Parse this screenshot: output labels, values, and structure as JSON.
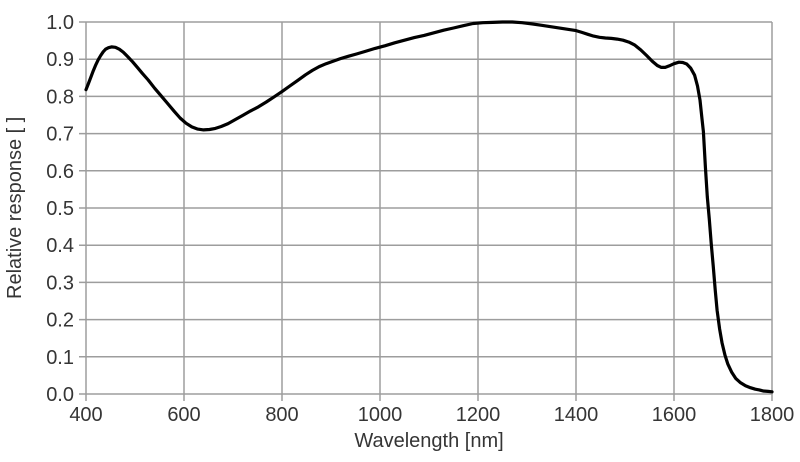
{
  "chart_data": {
    "type": "line",
    "title": "",
    "xlabel": "Wavelength [nm]",
    "ylabel": "Relative response [ ]",
    "xlim": [
      400,
      1800
    ],
    "ylim": [
      0.0,
      1.0
    ],
    "grid": true,
    "legend_position": "none",
    "x_ticks": [
      400,
      600,
      800,
      1000,
      1200,
      1400,
      1600,
      1800
    ],
    "x_tick_labels": [
      "400",
      "600",
      "800",
      "1000",
      "1200",
      "1400",
      "1600",
      "1800"
    ],
    "y_ticks": [
      0.0,
      0.1,
      0.2,
      0.3,
      0.4,
      0.5,
      0.6,
      0.7,
      0.8,
      0.9,
      1.0
    ],
    "y_tick_labels": [
      "0.0",
      "0.1",
      "0.2",
      "0.3",
      "0.4",
      "0.5",
      "0.6",
      "0.7",
      "0.8",
      "0.9",
      "1.0"
    ],
    "line_color": "#000000",
    "grid_color": "#9d9d9d",
    "text_color": "#353535",
    "series": [
      {
        "name": "Relative response",
        "points": [
          [
            400,
            0.818
          ],
          [
            405,
            0.835
          ],
          [
            410,
            0.852
          ],
          [
            415,
            0.869
          ],
          [
            420,
            0.885
          ],
          [
            425,
            0.899
          ],
          [
            430,
            0.91
          ],
          [
            435,
            0.92
          ],
          [
            440,
            0.927
          ],
          [
            446,
            0.931
          ],
          [
            452,
            0.933
          ],
          [
            460,
            0.932
          ],
          [
            468,
            0.927
          ],
          [
            476,
            0.919
          ],
          [
            485,
            0.907
          ],
          [
            495,
            0.893
          ],
          [
            505,
            0.878
          ],
          [
            515,
            0.862
          ],
          [
            527,
            0.844
          ],
          [
            540,
            0.822
          ],
          [
            553,
            0.802
          ],
          [
            566,
            0.782
          ],
          [
            580,
            0.76
          ],
          [
            592,
            0.742
          ],
          [
            604,
            0.728
          ],
          [
            616,
            0.718
          ],
          [
            628,
            0.712
          ],
          [
            640,
            0.71
          ],
          [
            652,
            0.711
          ],
          [
            664,
            0.714
          ],
          [
            676,
            0.719
          ],
          [
            690,
            0.727
          ],
          [
            705,
            0.738
          ],
          [
            720,
            0.749
          ],
          [
            736,
            0.761
          ],
          [
            752,
            0.772
          ],
          [
            768,
            0.785
          ],
          [
            784,
            0.799
          ],
          [
            800,
            0.813
          ],
          [
            816,
            0.828
          ],
          [
            832,
            0.843
          ],
          [
            848,
            0.858
          ],
          [
            862,
            0.87
          ],
          [
            876,
            0.88
          ],
          [
            890,
            0.888
          ],
          [
            905,
            0.895
          ],
          [
            920,
            0.902
          ],
          [
            936,
            0.908
          ],
          [
            952,
            0.914
          ],
          [
            970,
            0.921
          ],
          [
            990,
            0.929
          ],
          [
            1010,
            0.936
          ],
          [
            1030,
            0.944
          ],
          [
            1050,
            0.951
          ],
          [
            1070,
            0.958
          ],
          [
            1090,
            0.964
          ],
          [
            1110,
            0.971
          ],
          [
            1130,
            0.978
          ],
          [
            1150,
            0.984
          ],
          [
            1170,
            0.99
          ],
          [
            1190,
            0.996
          ],
          [
            1210,
            0.998
          ],
          [
            1230,
            0.999
          ],
          [
            1250,
            1.0
          ],
          [
            1270,
            1.0
          ],
          [
            1290,
            0.998
          ],
          [
            1310,
            0.995
          ],
          [
            1330,
            0.991
          ],
          [
            1350,
            0.987
          ],
          [
            1370,
            0.983
          ],
          [
            1385,
            0.98
          ],
          [
            1400,
            0.977
          ],
          [
            1412,
            0.972
          ],
          [
            1424,
            0.967
          ],
          [
            1436,
            0.962
          ],
          [
            1448,
            0.959
          ],
          [
            1460,
            0.957
          ],
          [
            1472,
            0.956
          ],
          [
            1484,
            0.954
          ],
          [
            1496,
            0.951
          ],
          [
            1508,
            0.946
          ],
          [
            1520,
            0.938
          ],
          [
            1532,
            0.925
          ],
          [
            1544,
            0.91
          ],
          [
            1556,
            0.894
          ],
          [
            1566,
            0.883
          ],
          [
            1574,
            0.878
          ],
          [
            1582,
            0.878
          ],
          [
            1590,
            0.882
          ],
          [
            1600,
            0.888
          ],
          [
            1610,
            0.892
          ],
          [
            1618,
            0.891
          ],
          [
            1626,
            0.887
          ],
          [
            1634,
            0.876
          ],
          [
            1642,
            0.857
          ],
          [
            1648,
            0.828
          ],
          [
            1653,
            0.79
          ],
          [
            1657,
            0.742
          ],
          [
            1660,
            0.705
          ],
          [
            1664,
            0.61
          ],
          [
            1668,
            0.53
          ],
          [
            1672,
            0.47
          ],
          [
            1676,
            0.405
          ],
          [
            1680,
            0.345
          ],
          [
            1684,
            0.28
          ],
          [
            1688,
            0.225
          ],
          [
            1693,
            0.175
          ],
          [
            1698,
            0.138
          ],
          [
            1704,
            0.104
          ],
          [
            1710,
            0.08
          ],
          [
            1718,
            0.058
          ],
          [
            1726,
            0.042
          ],
          [
            1736,
            0.03
          ],
          [
            1746,
            0.022
          ],
          [
            1756,
            0.017
          ],
          [
            1766,
            0.013
          ],
          [
            1774,
            0.011
          ],
          [
            1782,
            0.008
          ],
          [
            1792,
            0.007
          ],
          [
            1800,
            0.006
          ]
        ]
      }
    ]
  }
}
